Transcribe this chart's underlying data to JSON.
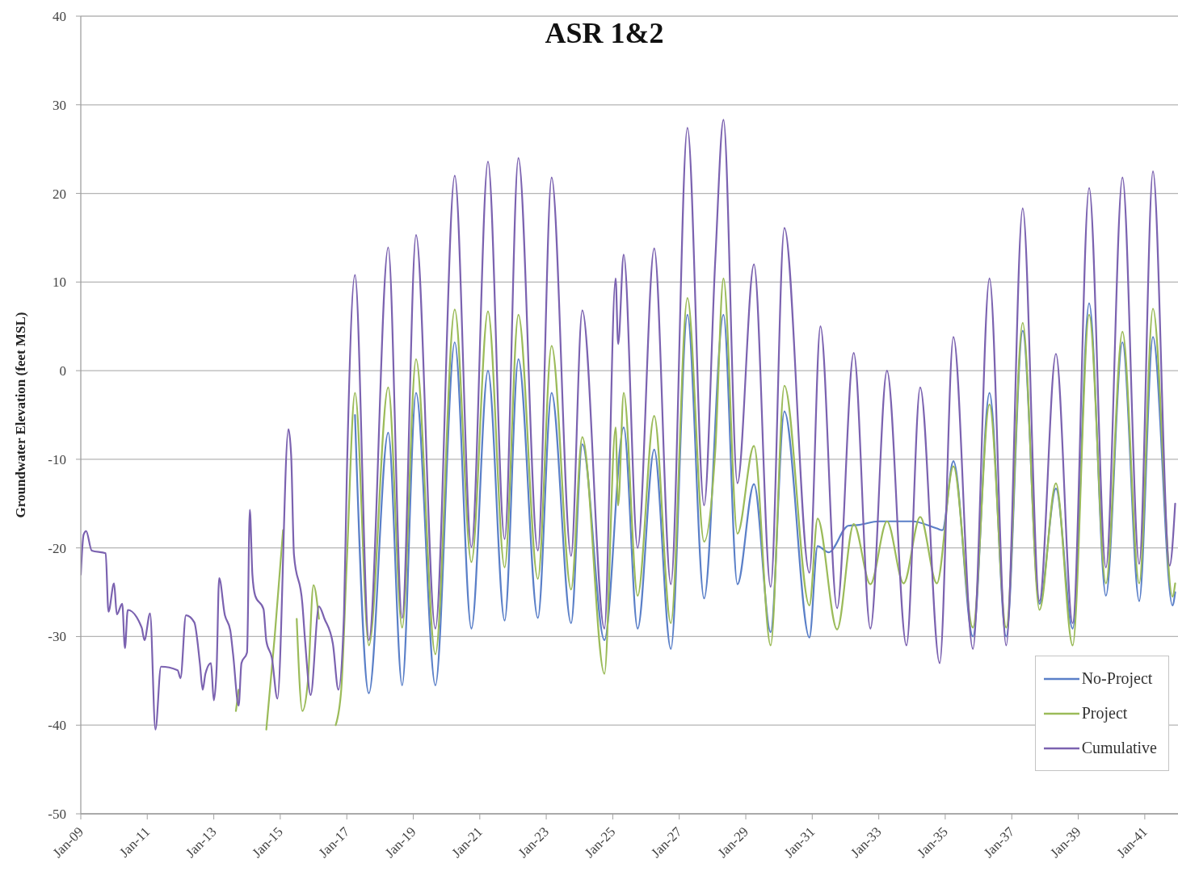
{
  "chart_data": {
    "type": "line",
    "title": "ASR 1&2",
    "ylabel": "Groundwater Elevation (feet MSL)",
    "xlim": [
      "2009-01",
      "2042-01"
    ],
    "xticks": [
      {
        "value": "2009-01",
        "label": "Jan-09"
      },
      {
        "value": "2011-01",
        "label": "Jan-11"
      },
      {
        "value": "2013-01",
        "label": "Jan-13"
      },
      {
        "value": "2015-01",
        "label": "Jan-15"
      },
      {
        "value": "2017-01",
        "label": "Jan-17"
      },
      {
        "value": "2019-01",
        "label": "Jan-19"
      },
      {
        "value": "2021-01",
        "label": "Jan-21"
      },
      {
        "value": "2023-01",
        "label": "Jan-23"
      },
      {
        "value": "2025-01",
        "label": "Jan-25"
      },
      {
        "value": "2027-01",
        "label": "Jan-27"
      },
      {
        "value": "2029-01",
        "label": "Jan-29"
      },
      {
        "value": "2031-01",
        "label": "Jan-31"
      },
      {
        "value": "2033-01",
        "label": "Jan-33"
      },
      {
        "value": "2035-01",
        "label": "Jan-35"
      },
      {
        "value": "2037-01",
        "label": "Jan-37"
      },
      {
        "value": "2039-01",
        "label": "Jan-39"
      },
      {
        "value": "2041-01",
        "label": "Jan-41"
      }
    ],
    "ylim": [
      -50,
      40
    ],
    "yticks": [
      -50,
      -40,
      -30,
      -20,
      -10,
      0,
      10,
      20,
      30,
      40
    ],
    "grid": "y",
    "legend": "bottom right",
    "series": [
      {
        "name": "No-Project",
        "color": "#5a7fc8",
        "x": [
          "2017-04",
          "2017-09",
          "2018-04",
          "2018-09",
          "2019-02",
          "2019-09",
          "2020-04",
          "2020-10",
          "2021-04",
          "2021-10",
          "2022-03",
          "2022-10",
          "2023-03",
          "2023-10",
          "2024-02",
          "2024-10",
          "2025-05",
          "2025-10",
          "2026-04",
          "2026-10",
          "2027-04",
          "2027-10",
          "2028-05",
          "2028-10",
          "2029-04",
          "2029-10",
          "2030-03",
          "2030-12",
          "2031-03",
          "2031-07",
          "2032-02",
          "2032-06",
          "2033-01",
          "2034-01",
          "2034-10",
          "2034-12",
          "2035-04",
          "2035-11",
          "2036-05",
          "2036-11",
          "2037-05",
          "2037-11",
          "2038-05",
          "2038-11",
          "2039-05",
          "2039-11",
          "2040-05",
          "2040-11",
          "2041-04",
          "2041-11",
          "2041-12"
        ],
        "values": [
          -5,
          -36.4,
          -7,
          -35.5,
          -2.5,
          -35.5,
          3.2,
          -29.1,
          0,
          -28.2,
          1.3,
          -27.9,
          -2.5,
          -28.5,
          -8.3,
          -30.4,
          -6.4,
          -29.1,
          -8.9,
          -31.4,
          6.3,
          -25.7,
          6.3,
          -24.1,
          -12.8,
          -29.5,
          -4.6,
          -30.1,
          -19.8,
          -20.5,
          -17.5,
          -17.4,
          -17,
          -17,
          -17.8,
          -18,
          -10.2,
          -30,
          -2.5,
          -30,
          4.5,
          -26.3,
          -13.3,
          -29.1,
          7.6,
          -25.4,
          3.2,
          -26,
          3.8,
          -26.5,
          -25
        ]
      },
      {
        "name": "Project",
        "color": "#9bbb59",
        "x": [
          "2013-09",
          "2013-10",
          "2013-12",
          "2014-08",
          "2014-11",
          "2015-02",
          "2015-04",
          "2015-07",
          "2015-09",
          "2015-11",
          "2016-01",
          "2016-03",
          "2016-06",
          "2016-09",
          "2016-11",
          "2017-01",
          "2017-04",
          "2017-09",
          "2018-04",
          "2018-09",
          "2019-02",
          "2019-09",
          "2020-04",
          "2020-10",
          "2021-04",
          "2021-10",
          "2022-03",
          "2022-10",
          "2023-03",
          "2023-10",
          "2024-02",
          "2024-10",
          "2025-02",
          "2025-03",
          "2025-05",
          "2025-10",
          "2026-04",
          "2026-10",
          "2027-04",
          "2027-10",
          "2028-02",
          "2028-05",
          "2028-10",
          "2029-04",
          "2029-10",
          "2030-03",
          "2030-12",
          "2031-03",
          "2031-10",
          "2032-04",
          "2032-10",
          "2033-04",
          "2033-10",
          "2034-04",
          "2034-10",
          "2035-04",
          "2035-11",
          "2036-05",
          "2036-11",
          "2037-05",
          "2037-11",
          "2038-05",
          "2038-11",
          "2039-05",
          "2039-11",
          "2040-05",
          "2040-11",
          "2041-04",
          "2041-11",
          "2041-12"
        ],
        "values": [
          -38.4,
          -36,
          null,
          -40.5,
          -30,
          -18,
          null,
          -28,
          -38.4,
          -35,
          -24.2,
          -28,
          null,
          -40,
          -36,
          -21.6,
          -2.5,
          -31,
          -1.9,
          -29,
          1.3,
          -32,
          6.9,
          -21.6,
          6.7,
          -22.2,
          6.3,
          -23.5,
          2.8,
          -24.7,
          -7.5,
          -34.2,
          -6.4,
          -15.2,
          -2.5,
          -25.4,
          -5.1,
          -28.5,
          8.2,
          -19.3,
          -9,
          10.4,
          -18.4,
          -8.5,
          -31,
          -1.7,
          -26.5,
          -16.7,
          -29.2,
          -17.3,
          -24.1,
          -17,
          -24,
          -16.5,
          -24,
          -10.8,
          -29,
          -3.8,
          -29,
          5.4,
          -27,
          -12.7,
          -31,
          6.3,
          -24,
          4.4,
          -24,
          7,
          -25.5,
          -24
        ]
      },
      {
        "name": "Cumulative",
        "color": "#7b62b0",
        "x": [
          "2009-01",
          "2009-02",
          "2009-03",
          "2009-05",
          "2009-10",
          "2009-11",
          "2010-01",
          "2010-02",
          "2010-04",
          "2010-05",
          "2010-06",
          "2010-11",
          "2010-12",
          "2011-02",
          "2011-04",
          "2011-06",
          "2011-12",
          "2012-01",
          "2012-03",
          "2012-06",
          "2012-08",
          "2012-09",
          "2012-10",
          "2012-12",
          "2013-01",
          "2013-02",
          "2013-03",
          "2013-05",
          "2013-07",
          "2013-08",
          "2013-10",
          "2013-11",
          "2014-01",
          "2014-02",
          "2014-03",
          "2014-04",
          "2014-07",
          "2014-08",
          "2014-10",
          "2014-12",
          "2015-04",
          "2015-05",
          "2015-06",
          "2015-09",
          "2015-10",
          "2015-12",
          "2016-03",
          "2016-05",
          "2016-08",
          "2016-10",
          "2016-12",
          "2017-01",
          "2017-04",
          "2017-09",
          "2018-04",
          "2018-09",
          "2019-02",
          "2019-09",
          "2020-04",
          "2020-10",
          "2021-04",
          "2021-10",
          "2022-03",
          "2022-10",
          "2023-03",
          "2023-10",
          "2024-02",
          "2024-10",
          "2025-02",
          "2025-03",
          "2025-05",
          "2025-10",
          "2026-04",
          "2026-10",
          "2027-04",
          "2027-10",
          "2028-02",
          "2028-05",
          "2028-10",
          "2029-04",
          "2029-10",
          "2030-03",
          "2030-12",
          "2031-04",
          "2031-10",
          "2032-04",
          "2032-10",
          "2033-04",
          "2033-11",
          "2034-04",
          "2034-11",
          "2035-04",
          "2035-11",
          "2036-05",
          "2036-11",
          "2037-05",
          "2037-11",
          "2038-05",
          "2038-11",
          "2039-05",
          "2039-11",
          "2040-05",
          "2040-11",
          "2041-04",
          "2041-10",
          "2041-12"
        ],
        "values": [
          -23,
          -18.5,
          -18.1,
          -20.3,
          -20.6,
          -27.2,
          -24,
          -27.5,
          -26.3,
          -31.3,
          -27,
          -29,
          -30.4,
          -27.4,
          -40.5,
          -33.4,
          -33.8,
          -34.7,
          -27.6,
          -28.4,
          -33,
          -36,
          -34.2,
          -33,
          -37.2,
          -33.6,
          -23.4,
          -27.5,
          -29.3,
          -32,
          -37.8,
          -33,
          -31.8,
          -15.7,
          -23,
          -25.4,
          -26.9,
          -30.5,
          -32.4,
          -37,
          -6.6,
          -9.6,
          -20.8,
          -26.3,
          -30.5,
          -36.6,
          -26.6,
          -28,
          -30.8,
          -36,
          -27.5,
          -12,
          10.8,
          -30.4,
          13.9,
          -27.9,
          15.3,
          -29.1,
          22,
          -19.9,
          23.6,
          -19,
          24,
          -20.3,
          21.8,
          -20.9,
          6.8,
          -29.1,
          10.4,
          3,
          13.1,
          -20,
          13.8,
          -24.1,
          27.4,
          -15.2,
          12.5,
          28.3,
          -12.7,
          12,
          -24.4,
          16.1,
          -22.8,
          5,
          -26.8,
          2,
          -29.1,
          0,
          -31,
          -1.9,
          -33,
          3.8,
          -31.4,
          10.4,
          -31,
          18.3,
          -26,
          1.9,
          -28.5,
          20.6,
          -22.2,
          21.8,
          -21.8,
          22.5,
          -22,
          -15
        ]
      }
    ]
  }
}
